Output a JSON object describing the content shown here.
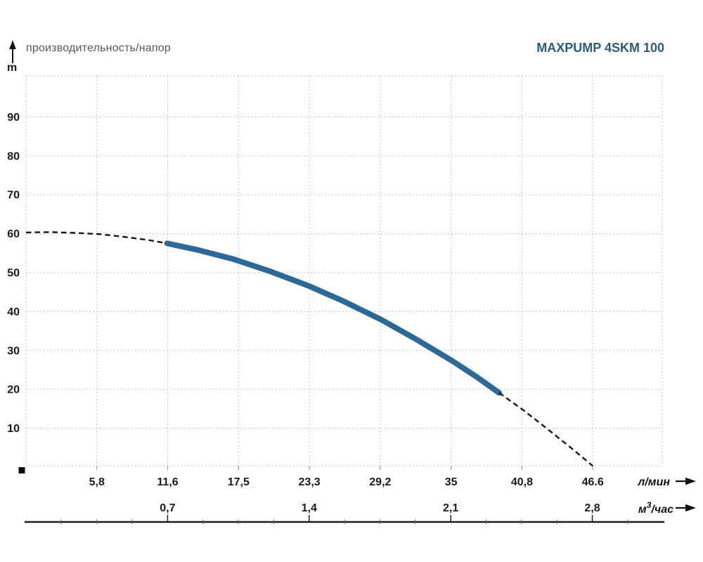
{
  "header": {
    "axis_title": "производительность/напор",
    "pump_model": "MAXPUMP 4SKM 100",
    "y_unit": "m"
  },
  "colors": {
    "curve_solid": "#2d6996",
    "curve_dashed": "#151515",
    "grid": "#cccccc",
    "tick_text": "#1b1b1b",
    "title_gray": "#58585a",
    "brand_blue": "#2a5c7e",
    "axis_black": "#1a1a1a",
    "tick_stub": "#9a9a9a",
    "minor_tick": "#666666"
  },
  "axes": {
    "y": {
      "unit": "m",
      "ticks": [
        10,
        20,
        30,
        40,
        50,
        60,
        70,
        80,
        90
      ],
      "min": 0,
      "max": 100
    },
    "x_lmin": {
      "unit": "л/мин",
      "tick_values": [
        5.825,
        11.65,
        17.475,
        23.3,
        29.125,
        34.95,
        40.775,
        46.6
      ],
      "tick_labels": [
        "5,8",
        "11,6",
        "17,5",
        "23,3",
        "29,2",
        "35",
        "40,8",
        "46.6"
      ],
      "min": 0,
      "max": 52.3
    },
    "x_m3h": {
      "unit": "м³/час",
      "unit_parts": {
        "base": "м",
        "sup": "3",
        "rest": "/час"
      },
      "tick_values": [
        0.7,
        1.4,
        2.1,
        2.8
      ],
      "tick_labels": [
        "0,7",
        "1,4",
        "2,1",
        "2,8"
      ],
      "minor_step": 0.175,
      "minor_count": 17
    }
  },
  "chart_data": {
    "type": "line",
    "title": "производительность/напор",
    "subtitle": "MAXPUMP 4SKM 100",
    "xlabel_primary": "л/мин",
    "xlabel_secondary": "м³/час",
    "ylabel": "m",
    "xlim_lmin": [
      0,
      52.3
    ],
    "ylim_m": [
      0,
      100
    ],
    "grid": true,
    "legend": false,
    "series": [
      {
        "name": "head-curve-extrapolated-low",
        "style": "dashed",
        "points": [
          [
            0,
            60.3
          ],
          [
            2,
            60.4
          ],
          [
            4,
            60.2
          ],
          [
            6,
            59.9
          ],
          [
            8,
            59.2
          ],
          [
            10,
            58.4
          ],
          [
            11.6,
            57.5
          ]
        ]
      },
      {
        "name": "head-curve-operating-range",
        "style": "solid",
        "points": [
          [
            11.6,
            57.5
          ],
          [
            14,
            55.9
          ],
          [
            17,
            53.5
          ],
          [
            20,
            50.4
          ],
          [
            23.3,
            46.5
          ],
          [
            26,
            42.8
          ],
          [
            29.2,
            37.9
          ],
          [
            32,
            33.0
          ],
          [
            35,
            27.4
          ],
          [
            37,
            23.3
          ],
          [
            38.9,
            19.1
          ]
        ]
      },
      {
        "name": "head-curve-extrapolated-high",
        "style": "dashed",
        "points": [
          [
            38.9,
            19.1
          ],
          [
            41,
            14.4
          ],
          [
            43,
            9.5
          ],
          [
            45,
            4.5
          ],
          [
            46.6,
            0.3
          ]
        ]
      }
    ]
  }
}
